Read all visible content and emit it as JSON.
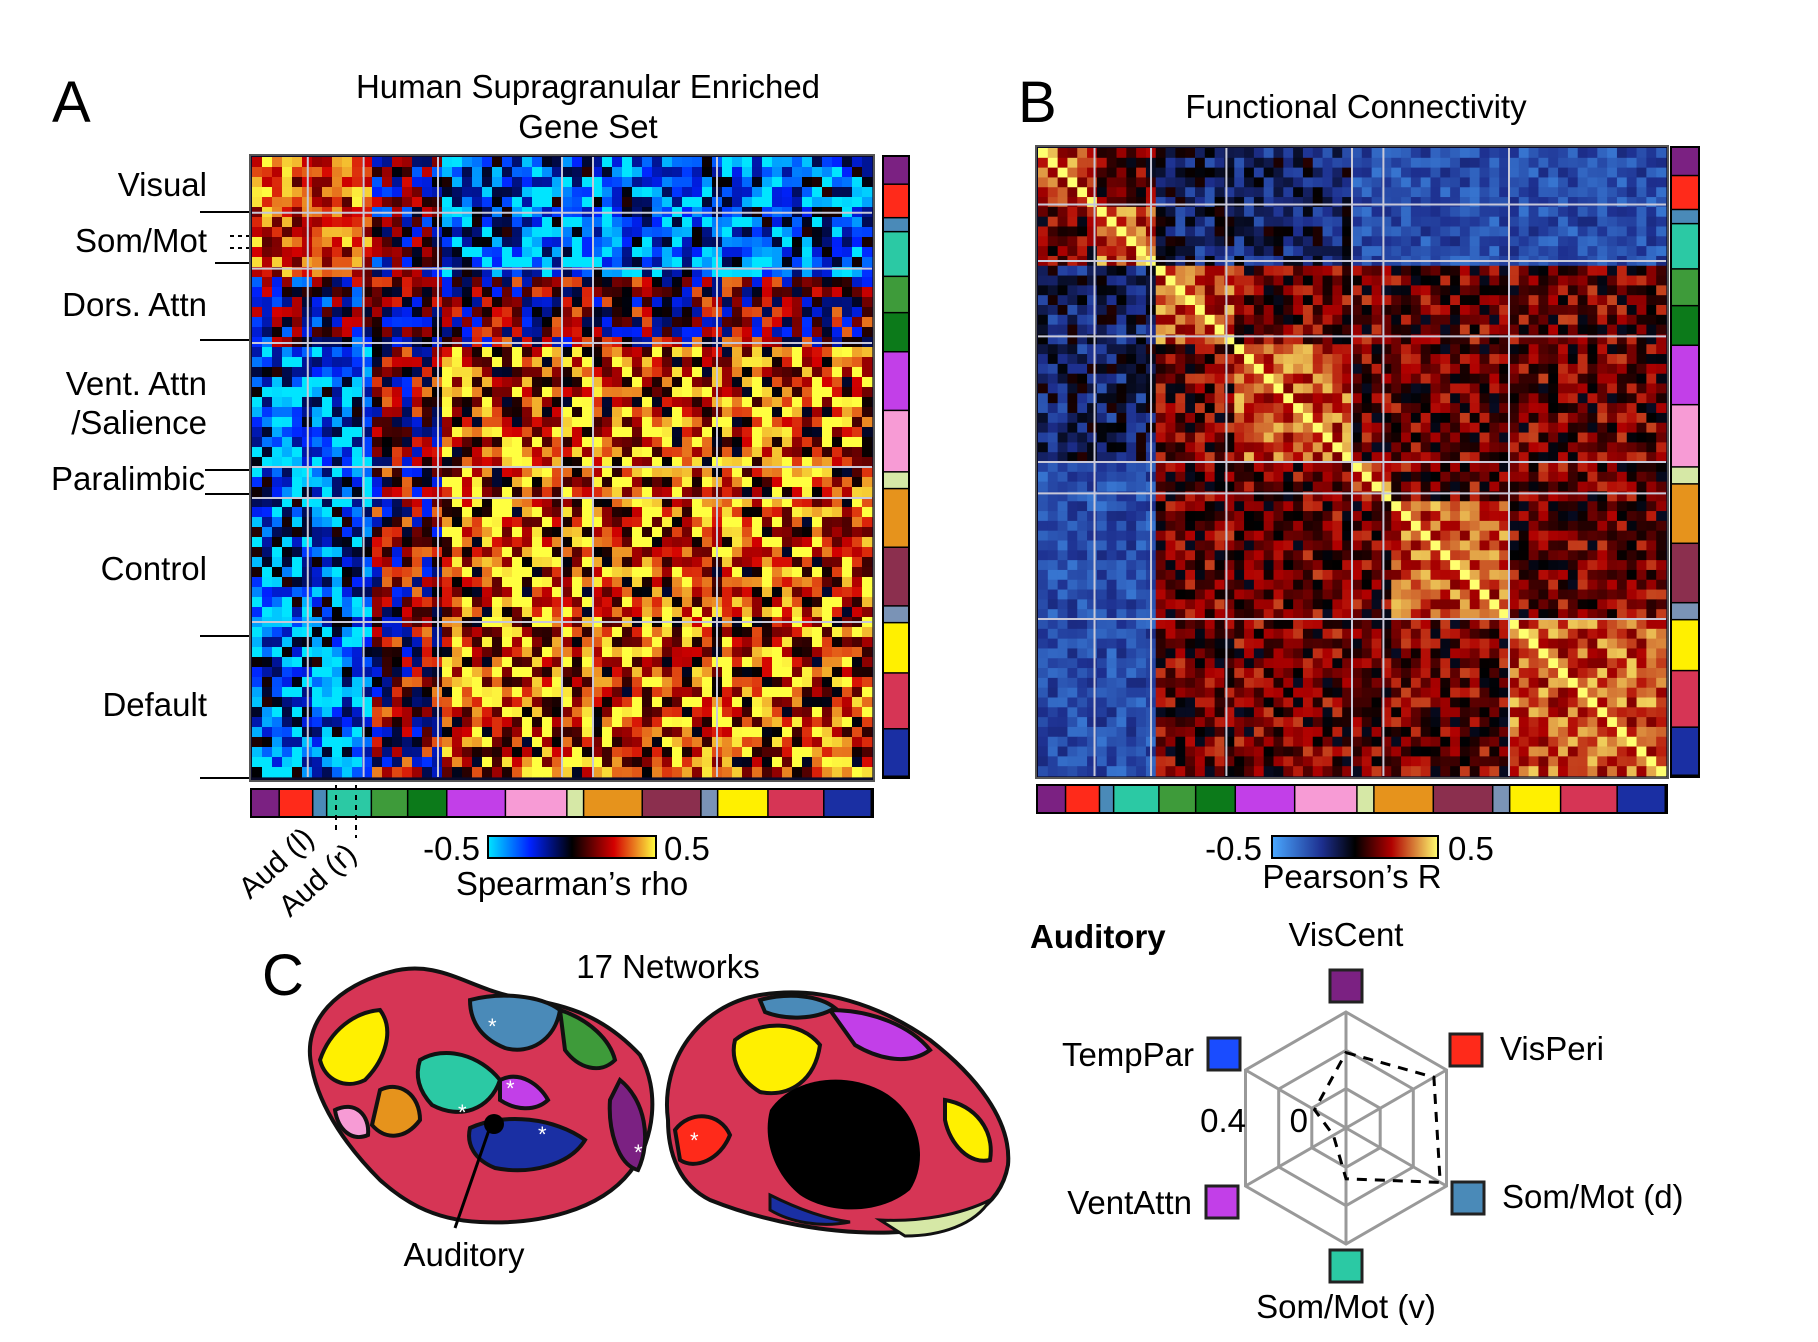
{
  "panel_a": {
    "letter": "A",
    "title_line1": "Human Supragranular Enriched",
    "title_line2": "Gene Set",
    "row_labels": [
      "Visual",
      "Som/Mot",
      "Dors. Attn",
      "Vent. Attn",
      "/Salience",
      "Paralimbic",
      "Control",
      "Default"
    ],
    "aud_labels": [
      "Aud (l)",
      "Aud (r)"
    ],
    "colorbar": {
      "min_label": "-0.5",
      "max_label": "0.5",
      "label": "Spearman’s rho",
      "min": -0.5,
      "max": 0.5
    }
  },
  "panel_b": {
    "letter": "B",
    "title": "Functional Connectivity",
    "colorbar": {
      "min_label": "-0.5",
      "max_label": "0.5",
      "label": "Pearson’s R",
      "min": -0.5,
      "max": 0.5
    }
  },
  "network_colors": [
    "#7b2182",
    "#ff2a1a",
    "#4a8ab8",
    "#2bc9a4",
    "#3e9b3a",
    "#0c7a1a",
    "#c23fe8",
    "#f79bd5",
    "#d6e8a6",
    "#e6931c",
    "#8b2f4e",
    "#7a93b6",
    "#fff000",
    "#d63555",
    "#1a2fa3"
  ],
  "panel_c": {
    "letter": "C",
    "title": "17 Networks",
    "pointer_label": "Auditory"
  },
  "radar": {
    "title": "Auditory",
    "axes": [
      "VisCent",
      "VisPeri",
      "Som/Mot (d)",
      "Som/Mot (v)",
      "VentAttn",
      "TempPar"
    ],
    "axis_colors": [
      "#7b2182",
      "#ff2a1a",
      "#4a8ab8",
      "#2bc9a4",
      "#c23fe8",
      "#1a4cff"
    ],
    "tick_labels": [
      "0.4",
      "0"
    ],
    "range": [
      -0.4,
      0.4
    ],
    "chart_data": {
      "type": "radar",
      "categories": [
        "VisCent",
        "VisPeri",
        "Som/Mot (d)",
        "Som/Mot (v)",
        "VentAttn",
        "TempPar"
      ],
      "values": [
        0.12,
        0.3,
        0.35,
        -0.05,
        -0.3,
        -0.15
      ],
      "rlim": [
        -0.4,
        0.4
      ]
    }
  }
}
